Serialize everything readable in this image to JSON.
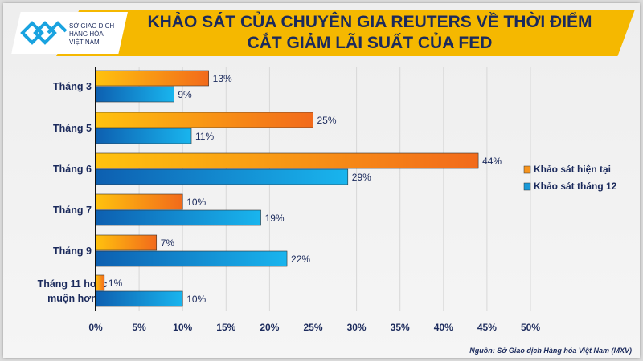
{
  "logo": {
    "line1": "SỞ GIAO DỊCH",
    "line2": "HÀNG HÓA",
    "line3": "VIỆT NAM"
  },
  "title": {
    "line1": "KHẢO SÁT CỦA CHUYÊN GIA REUTERS VỀ THỜI ĐIỂM",
    "line2": "CẮT GIẢM LÃI SUẤT CỦA FED"
  },
  "source": "Nguồn: Sở Giao dịch Hàng hóa Việt Nam (MXV)",
  "chart_data": {
    "type": "bar",
    "orientation": "horizontal",
    "categories": [
      "Tháng 3",
      "Tháng 5",
      "Tháng 6",
      "Tháng 7",
      "Tháng 9",
      "Tháng 11 hoặc muộn hơn"
    ],
    "series": [
      {
        "name": "Khảo sát hiện tại",
        "color": "#f7941d",
        "values": [
          13,
          25,
          44,
          10,
          7,
          1
        ]
      },
      {
        "name": "Khảo sát tháng 12",
        "color": "#1a9ad9",
        "values": [
          9,
          11,
          29,
          19,
          22,
          10
        ]
      }
    ],
    "xticks": [
      "0%",
      "5%",
      "10%",
      "15%",
      "20%",
      "25%",
      "30%",
      "35%",
      "40%",
      "45%",
      "50%"
    ],
    "xlim": [
      0,
      50
    ],
    "legend": "right"
  }
}
